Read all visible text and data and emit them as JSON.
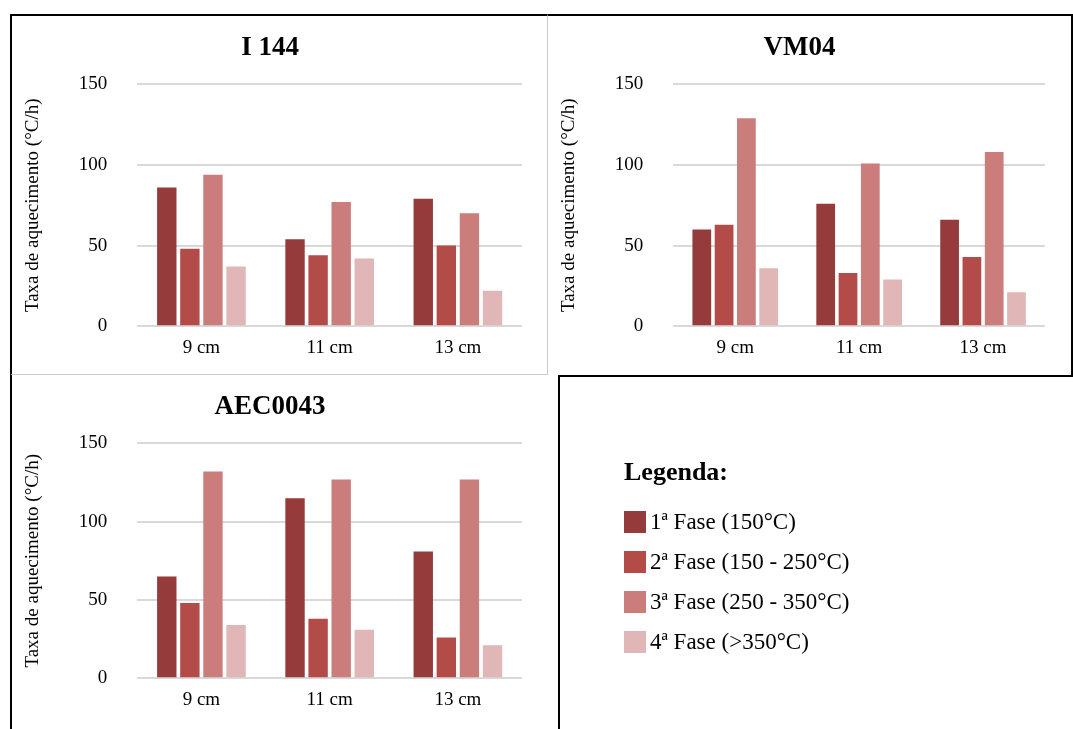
{
  "chart_data": [
    {
      "type": "bar",
      "title": "I 144",
      "ylabel": "Taxa de aquecimento (°C/h)",
      "categories": [
        "9 cm",
        "11 cm",
        "13 cm"
      ],
      "ylim": [
        0,
        150
      ],
      "yticks": [
        0,
        50,
        100,
        150
      ],
      "grid": "y",
      "series": [
        {
          "color": "#953b3b",
          "values": [
            86,
            54,
            79
          ]
        },
        {
          "color": "#b34b49",
          "values": [
            48,
            44,
            50
          ]
        },
        {
          "color": "#cb7d7c",
          "values": [
            94,
            77,
            70
          ]
        },
        {
          "color": "#e0b6b6",
          "values": [
            37,
            42,
            22
          ]
        }
      ]
    },
    {
      "type": "bar",
      "title": "VM04",
      "ylabel": "Taxa de aquecimento (°C/h)",
      "categories": [
        "9 cm",
        "11 cm",
        "13 cm"
      ],
      "ylim": [
        0,
        150
      ],
      "yticks": [
        0,
        50,
        100,
        150
      ],
      "grid": "y",
      "series": [
        {
          "color": "#953b3b",
          "values": [
            60,
            76,
            66
          ]
        },
        {
          "color": "#b34b49",
          "values": [
            63,
            33,
            43
          ]
        },
        {
          "color": "#cb7d7c",
          "values": [
            129,
            101,
            108
          ]
        },
        {
          "color": "#e0b6b6",
          "values": [
            36,
            29,
            21
          ]
        }
      ]
    },
    {
      "type": "bar",
      "title": "AEC0043",
      "ylabel": "Taxa de aquecimento (°C/h)",
      "categories": [
        "9 cm",
        "11 cm",
        "13 cm"
      ],
      "ylim": [
        0,
        150
      ],
      "yticks": [
        0,
        50,
        100,
        150
      ],
      "grid": "y",
      "legend": "right",
      "legend_title": "Legenda:",
      "series": [
        {
          "name": "1ª Fase (150°C)",
          "color": "#953b3b",
          "values": [
            65,
            115,
            81
          ]
        },
        {
          "name": "2ª Fase (150 - 250°C)",
          "color": "#b34b49",
          "values": [
            48,
            38,
            26
          ]
        },
        {
          "name": "3ª Fase (250 - 350°C)",
          "color": "#cb7d7c",
          "values": [
            132,
            127,
            127
          ]
        },
        {
          "name": "4ª Fase (>350°C)",
          "color": "#e0b6b6",
          "values": [
            34,
            31,
            21
          ]
        }
      ]
    }
  ]
}
